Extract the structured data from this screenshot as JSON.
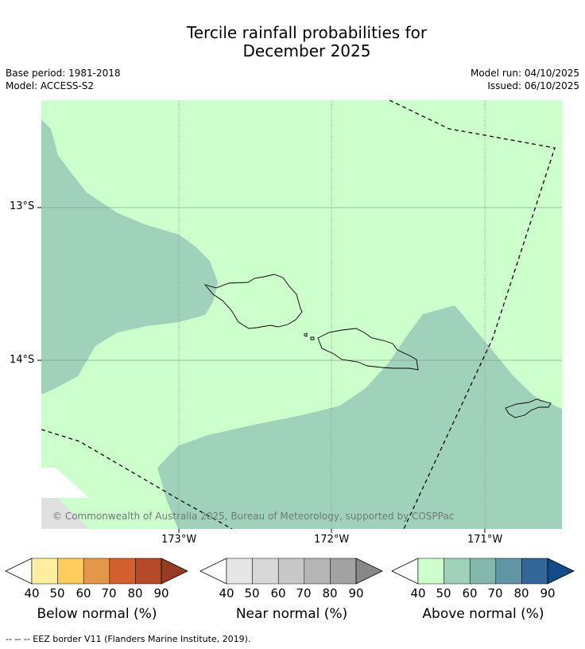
{
  "title": {
    "line1": "Tercile rainfall probabilities for",
    "line2": "December 2025"
  },
  "meta": {
    "base_period": "Base period: 1981-2018",
    "model": "Model: ACCESS-S2",
    "model_run": "Model run: 04/10/2025",
    "issued": "Issued: 06/10/2025"
  },
  "map": {
    "lat_labels": [
      "13°S",
      "14°S"
    ],
    "lon_labels": [
      "173°W",
      "172°W",
      "171°W"
    ],
    "copyright": "© Commonwealth of Australia 2025, Bureau of Meteorology, supported by COSPPac",
    "colors": {
      "above_40_50": "#ccffcc",
      "above_50_60": "#a0d2bb",
      "no_data": "#e0e0e0"
    }
  },
  "legend": {
    "ticks": [
      "40",
      "50",
      "60",
      "70",
      "80",
      "90"
    ],
    "below": {
      "title": "Below normal (%)",
      "colors": [
        "#ffeda0",
        "#fecc5c",
        "#e3974a",
        "#d2612f",
        "#b44a28",
        "#993a22"
      ]
    },
    "near": {
      "title": "Near normal (%)",
      "colors": [
        "#e6e6e6",
        "#d8d8d8",
        "#c8c8c8",
        "#b6b6b6",
        "#a2a2a2",
        "#888888"
      ]
    },
    "above": {
      "title": "Above normal (%)",
      "colors": [
        "#ccffcc",
        "#a0d2bb",
        "#84b8ad",
        "#5f95a5",
        "#33669a",
        "#124b85"
      ]
    }
  },
  "footer": "--  --  -- EEZ border V11 (Flanders Marine Institute, 2019)."
}
